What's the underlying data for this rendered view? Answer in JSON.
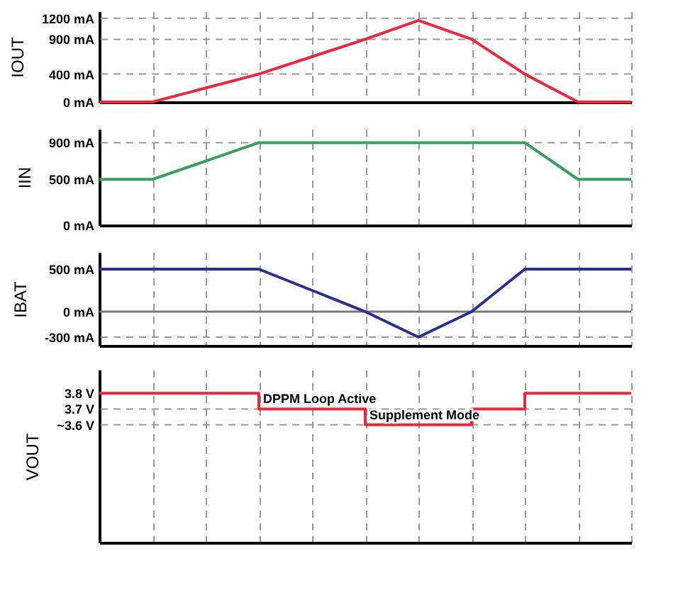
{
  "chart_data": [
    {
      "type": "line",
      "ylabel": "IOUT",
      "ylim": [
        0,
        1300
      ],
      "tick_labels": "y",
      "grid": "x",
      "categories": [
        null,
        null,
        null,
        null,
        null,
        null,
        null,
        null,
        null,
        null,
        null
      ],
      "yticks": [
        {
          "value": 0,
          "label": "0 mA"
        },
        {
          "value": 400,
          "label": "400 mA"
        },
        {
          "value": 900,
          "label": "900 mA"
        },
        {
          "value": 1200,
          "label": "1200 mA"
        }
      ],
      "series": [
        {
          "color": "#e8283c",
          "values": [
            0,
            0,
            200,
            400,
            650,
            900,
            1170,
            900,
            400,
            0,
            0
          ]
        }
      ],
      "ref_lines": [
        {
          "axis": "y",
          "value": 400,
          "color": "#999999",
          "line_style": "dashed"
        },
        {
          "axis": "y",
          "value": 900,
          "color": "#999999",
          "line_style": "dashed"
        },
        {
          "axis": "y",
          "value": 1200,
          "color": "#999999",
          "line_style": "dashed"
        }
      ]
    },
    {
      "type": "line",
      "ylabel": "IIN",
      "ylim": [
        0,
        1050
      ],
      "tick_labels": "y",
      "grid": "x",
      "categories": [
        null,
        null,
        null,
        null,
        null,
        null,
        null,
        null,
        null,
        null,
        null
      ],
      "yticks": [
        {
          "value": 0,
          "label": "0 mA"
        },
        {
          "value": 500,
          "label": "500 mA"
        },
        {
          "value": 900,
          "label": "900 mA"
        }
      ],
      "series": [
        {
          "color": "#3a9e5c",
          "values": [
            500,
            500,
            700,
            900,
            900,
            900,
            900,
            900,
            900,
            500,
            500
          ]
        }
      ],
      "ref_lines": [
        {
          "axis": "y",
          "value": 900,
          "color": "#999999",
          "line_style": "dashed"
        }
      ]
    },
    {
      "type": "line",
      "ylabel": "IBAT",
      "ylim": [
        -400,
        700
      ],
      "tick_labels": "y",
      "grid": "x",
      "categories": [
        null,
        null,
        null,
        null,
        null,
        null,
        null,
        null,
        null,
        null,
        null
      ],
      "yticks": [
        {
          "value": -300,
          "label": "-300 mA"
        },
        {
          "value": 0,
          "label": "0 mA"
        },
        {
          "value": 500,
          "label": "500 mA"
        }
      ],
      "series": [
        {
          "color": "#2b2f8c",
          "values": [
            500,
            500,
            500,
            500,
            250,
            0,
            -300,
            0,
            500,
            500,
            500
          ]
        }
      ],
      "ref_lines": [
        {
          "axis": "y",
          "value": 0,
          "color": "#777777",
          "line_style": "solid"
        },
        {
          "axis": "y",
          "value": -300,
          "color": "#999999",
          "line_style": "dashed"
        }
      ]
    },
    {
      "type": "step",
      "ylabel": "VOUT",
      "ylim": [
        2.85,
        3.95
      ],
      "tick_labels": "y",
      "grid": "x",
      "categories": [
        null,
        null,
        null,
        null,
        null,
        null,
        null,
        null,
        null,
        null,
        null
      ],
      "yticks": [
        {
          "value": 3.6,
          "label": "~3.6 V"
        },
        {
          "value": 3.7,
          "label": "3.7 V"
        },
        {
          "value": 3.8,
          "label": "3.8 V"
        }
      ],
      "series": [
        {
          "color": "#e8283c",
          "values": [
            3.8,
            3.8,
            3.8,
            3.7,
            3.7,
            3.6,
            3.6,
            3.7,
            3.8,
            3.8,
            3.8
          ]
        }
      ],
      "ref_lines": [
        {
          "axis": "y",
          "value": 3.7,
          "color": "#999999",
          "line_style": "dashed"
        },
        {
          "axis": "y",
          "value": 3.6,
          "color": "#999999",
          "line_style": "dashed"
        }
      ],
      "annotations": [
        {
          "text": "DPPM Loop Active",
          "y": 3.7
        },
        {
          "text": "Supplement Mode",
          "y": 3.6
        }
      ]
    }
  ]
}
